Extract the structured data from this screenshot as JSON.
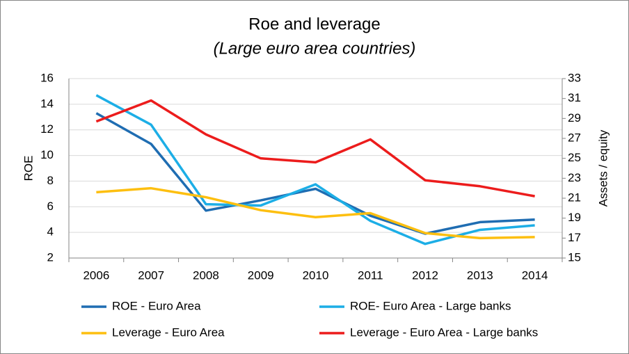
{
  "chart_data": {
    "type": "line",
    "title": "Roe and leverage",
    "subtitle": "(Large euro area countries)",
    "y_label": "ROE",
    "y2_label": "Assets / equity",
    "categories": [
      "2006",
      "2007",
      "2008",
      "2009",
      "2010",
      "2011",
      "2012",
      "2013",
      "2014"
    ],
    "ylim": [
      2,
      16
    ],
    "yticks": [
      2,
      4,
      6,
      8,
      10,
      12,
      14,
      16
    ],
    "y2lim": [
      15,
      33
    ],
    "y2ticks": [
      15,
      17,
      19,
      21,
      23,
      25,
      27,
      29,
      31,
      33
    ],
    "grid": true,
    "legend": "bottom",
    "series": [
      {
        "name": "ROE - Euro Area",
        "color": "#1f6db2",
        "values": [
          13.3,
          10.9,
          5.7,
          6.5,
          7.4,
          5.3,
          3.9,
          4.8,
          5.0
        ]
      },
      {
        "name": "ROE- Euro Area - Large banks",
        "color": "#1caee6",
        "values": [
          14.7,
          12.4,
          6.2,
          6.1,
          7.75,
          4.9,
          3.1,
          4.2,
          4.55
        ]
      },
      {
        "name": "Leverage - Euro Area",
        "color": "#fdbf10",
        "axis": "y2",
        "values": [
          21.6,
          22.0,
          21.1,
          19.8,
          19.1,
          19.5,
          17.5,
          17.0,
          17.1
        ]
      },
      {
        "name": "Leverage - Euro Area - Large banks",
        "color": "#ec1c1c",
        "axis": "y2",
        "values": [
          28.7,
          30.8,
          27.4,
          25.0,
          24.6,
          26.9,
          22.8,
          22.2,
          21.2
        ]
      }
    ]
  }
}
